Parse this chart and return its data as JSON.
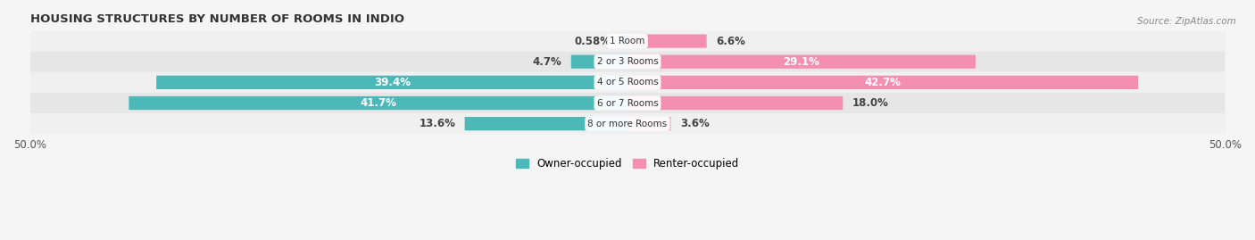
{
  "title": "HOUSING STRUCTURES BY NUMBER OF ROOMS IN INDIO",
  "source": "Source: ZipAtlas.com",
  "categories": [
    "1 Room",
    "2 or 3 Rooms",
    "4 or 5 Rooms",
    "6 or 7 Rooms",
    "8 or more Rooms"
  ],
  "owner_values": [
    0.58,
    4.7,
    39.4,
    41.7,
    13.6
  ],
  "renter_values": [
    6.6,
    29.1,
    42.7,
    18.0,
    3.6
  ],
  "owner_color": "#4db8b8",
  "renter_color": "#f48fb1",
  "owner_label": "Owner-occupied",
  "renter_label": "Renter-occupied",
  "xlim": [
    -50,
    50
  ],
  "bar_height": 0.62,
  "title_fontsize": 9.5,
  "label_fontsize": 8.5,
  "row_colors": [
    "#f0f0f0",
    "#e6e6e6",
    "#f0f0f0",
    "#e6e6e6",
    "#f0f0f0"
  ]
}
